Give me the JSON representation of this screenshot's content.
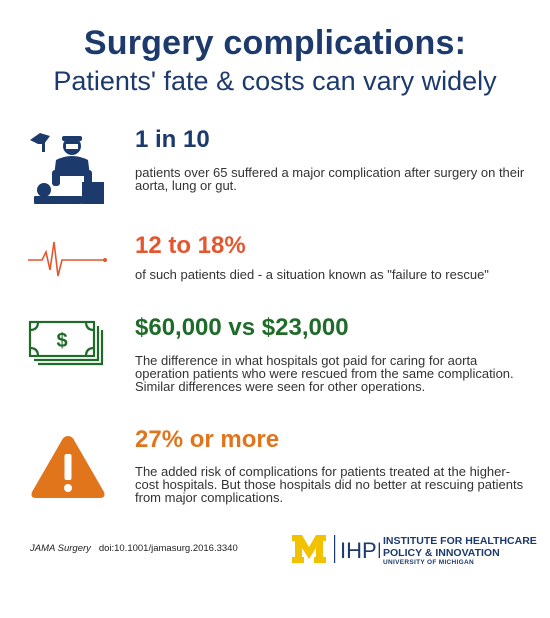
{
  "header": {
    "title": "Surgery complications:",
    "subtitle": "Patients' fate & costs can vary widely"
  },
  "colors": {
    "navy": "#1c3a6b",
    "red_orange": "#e4572e",
    "green": "#1f6b2a",
    "orange": "#e0751c",
    "gold": "#f2c200"
  },
  "facts": [
    {
      "icon": "surgeon-operating-icon",
      "stat": "1 in 10",
      "color": "#1c3a6b",
      "text": "patients over 65 suffered a major complication after surgery on their aorta, lung or gut."
    },
    {
      "icon": "heartbeat-flatline-icon",
      "stat": "12 to 18%",
      "color": "#e4572e",
      "text": "of such patients died - a situation known as \"failure to rescue\""
    },
    {
      "icon": "money-bills-icon",
      "stat": "$60,000 vs $23,000",
      "color": "#1f6b2a",
      "text": "The difference in what hospitals got paid for caring for aorta operation patients who were rescued from the same complication. Similar differences were seen for other operations."
    },
    {
      "icon": "warning-triangle-icon",
      "stat": "27% or more",
      "color": "#e0751c",
      "text": "The added risk of complications for patients treated at the higher-cost hospitals. But those hospitals did no better at rescuing patients from major complications."
    }
  ],
  "footer": {
    "journal": "JAMA Surgery",
    "doi": "doi:10.1001/jamasurg.2016.3340",
    "logo_mark": "M",
    "logo_abbrev": "IHPI",
    "logo_line1": "INSTITUTE FOR HEALTHCARE",
    "logo_line2": "POLICY & INNOVATION",
    "logo_line3": "UNIVERSITY OF MICHIGAN"
  }
}
